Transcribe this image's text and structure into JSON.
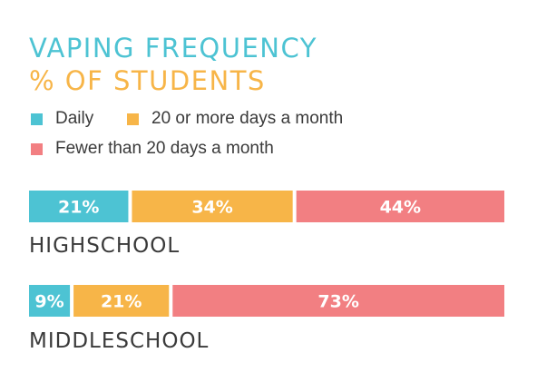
{
  "chart_data": {
    "type": "bar",
    "stacked": true,
    "orientation": "horizontal",
    "title": "VAPING FREQUENCY",
    "subtitle": "% OF STUDENTS",
    "categories": [
      "HIGHSCHOOL",
      "MIDDLESCHOOL"
    ],
    "series": [
      {
        "name": "Daily",
        "color": "#4dc3d3",
        "values": [
          21,
          9
        ],
        "labels": [
          "21%",
          "9%"
        ]
      },
      {
        "name": "20 or more days a month",
        "color": "#f7b548",
        "values": [
          34,
          21
        ],
        "labels": [
          "34%",
          "21%"
        ]
      },
      {
        "name": "Fewer than 20 days a month",
        "color": "#f27f82",
        "values": [
          44,
          73
        ],
        "labels": [
          "44%",
          "73%"
        ]
      }
    ],
    "legend_position": "top-left",
    "grid": false
  }
}
